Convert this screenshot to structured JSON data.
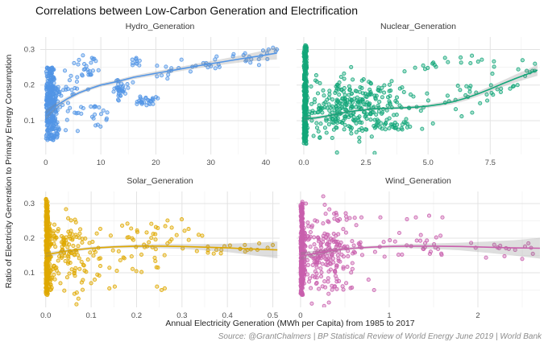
{
  "chart": {
    "title": "Correlations between Low-Carbon Generation and Electrification",
    "x_axis_label": "Annual Electricity Generation (MWh per Capita) from 1985 to 2017",
    "y_axis_label": "Ratio of Electricity Generation to Primary Energy Consumption",
    "caption": "Source: @GrantChalmers | BP Statistical Review of World Energy June 2019 | World Bank",
    "style": {
      "grid_major": "#e3e3e3",
      "grid_minor": "#f1f1f1",
      "ribbon_color": "#808080",
      "ribbon_opacity": 0.26,
      "tick_text_color": "#4f4f4f",
      "point_radius": 2.1,
      "point_fill_opacity": 0.38
    }
  },
  "chart_data": {
    "type": "scatter",
    "title": "Correlations between Low-Carbon Generation and Electrification",
    "xlabel": "Annual Electricity Generation (MWh per Capita) from 1985 to 2017",
    "ylabel": "Ratio of Electricity Generation to Primary Energy Consumption",
    "legend": "none",
    "grid": "on",
    "facets": [
      {
        "label": "Hydro_Generation",
        "color": "#5295E6",
        "seed": 7,
        "xlim": [
          -1,
          42.5
        ],
        "ylim": [
          0.005,
          0.335
        ],
        "xticks": [
          0,
          10,
          20,
          30,
          40
        ],
        "xtick_labels": [
          "0",
          "10",
          "20",
          "30",
          "40"
        ],
        "yticks": [
          0.1,
          0.2,
          0.3
        ],
        "ytick_labels": [
          "0.1",
          "0.2",
          "0.3"
        ],
        "trend": [
          [
            0,
            0.115
          ],
          [
            2,
            0.143
          ],
          [
            4,
            0.162
          ],
          [
            6,
            0.178
          ],
          [
            8,
            0.19
          ],
          [
            10,
            0.2
          ],
          [
            13,
            0.21
          ],
          [
            16,
            0.222
          ],
          [
            20,
            0.233
          ],
          [
            24,
            0.244
          ],
          [
            28,
            0.255
          ],
          [
            32,
            0.265
          ],
          [
            36,
            0.275
          ],
          [
            39,
            0.282
          ],
          [
            42,
            0.29
          ]
        ],
        "ci": [
          0.014,
          0.008,
          0.006,
          0.005,
          0.005,
          0.005,
          0.005,
          0.005,
          0.006,
          0.006,
          0.007,
          0.008,
          0.01,
          0.013,
          0.018
        ],
        "clusters": [
          {
            "type": "uniform",
            "n": 200,
            "x": [
              0.05,
              1.6
            ],
            "y": [
              0.045,
              0.25
            ]
          },
          {
            "type": "uniform",
            "n": 110,
            "x": [
              0.1,
              2.3
            ],
            "y": [
              0.05,
              0.2
            ]
          },
          {
            "type": "gauss",
            "n": 38,
            "cx": 4.3,
            "cy": 0.17,
            "sx": 1.4,
            "sy": 0.05,
            "xmin": 0.3
          },
          {
            "type": "gauss",
            "n": 22,
            "cx": 7.8,
            "cy": 0.245,
            "sx": 1.3,
            "sy": 0.018
          },
          {
            "type": "gauss",
            "n": 16,
            "cx": 9.8,
            "cy": 0.12,
            "sx": 1.1,
            "sy": 0.015
          },
          {
            "type": "gauss",
            "n": 34,
            "cx": 13.6,
            "cy": 0.19,
            "sx": 1.0,
            "sy": 0.012
          },
          {
            "type": "gauss",
            "n": 10,
            "cx": 16.2,
            "cy": 0.268,
            "sx": 0.7,
            "sy": 0.008
          },
          {
            "type": "uniform",
            "n": 26,
            "x": [
              16.5,
              20.5
            ],
            "y": [
              0.143,
              0.168
            ]
          },
          {
            "type": "band",
            "n": 26,
            "x": [
              20,
              35
            ],
            "jitter": 0.013
          },
          {
            "type": "gauss",
            "n": 12,
            "cx": 37,
            "cy": 0.272,
            "sx": 1.8,
            "sy": 0.01
          },
          {
            "type": "points",
            "pts": [
              [
                40.5,
                0.3
              ],
              [
                41.3,
                0.305
              ],
              [
                41.8,
                0.295
              ],
              [
                40.2,
                0.29
              ],
              [
                39.5,
                0.297
              ],
              [
                42,
                0.3
              ]
            ]
          }
        ]
      },
      {
        "label": "Nuclear_Generation",
        "color": "#13A679",
        "seed": 13,
        "xlim": [
          -0.29,
          9.5
        ],
        "ylim": [
          0.005,
          0.335
        ],
        "xticks": [
          0,
          2.5,
          5,
          7.5
        ],
        "xtick_labels": [
          "0.0",
          "2.5",
          "5.0",
          "7.5"
        ],
        "yticks": [
          0.1,
          0.2,
          0.3
        ],
        "ytick_labels": [
          "0.1",
          "0.2",
          "0.3"
        ],
        "trend": [
          [
            0,
            0.105
          ],
          [
            0.5,
            0.108
          ],
          [
            1,
            0.114
          ],
          [
            1.5,
            0.121
          ],
          [
            2,
            0.127
          ],
          [
            2.5,
            0.131
          ],
          [
            3,
            0.134
          ],
          [
            3.5,
            0.135
          ],
          [
            4,
            0.136
          ],
          [
            4.5,
            0.138
          ],
          [
            5,
            0.141
          ],
          [
            5.5,
            0.146
          ],
          [
            6,
            0.153
          ],
          [
            6.5,
            0.163
          ],
          [
            7,
            0.175
          ],
          [
            7.5,
            0.189
          ],
          [
            8,
            0.204
          ],
          [
            8.5,
            0.218
          ],
          [
            9,
            0.231
          ],
          [
            9.4,
            0.242
          ]
        ],
        "ci": [
          0.007,
          0.005,
          0.004,
          0.004,
          0.004,
          0.004,
          0.004,
          0.004,
          0.004,
          0.005,
          0.005,
          0.006,
          0.006,
          0.007,
          0.007,
          0.008,
          0.009,
          0.011,
          0.013,
          0.016
        ],
        "clusters": [
          {
            "type": "uniform",
            "n": 240,
            "x": [
              0.0,
              0.12
            ],
            "y": [
              0.035,
              0.315
            ]
          },
          {
            "type": "uniform",
            "n": 80,
            "x": [
              0.0,
              0.1
            ],
            "y": [
              0.06,
              0.2
            ]
          },
          {
            "type": "gauss",
            "n": 240,
            "cx": 1.5,
            "cy": 0.13,
            "sx": 0.95,
            "sy": 0.04,
            "xmin": 0.15
          },
          {
            "type": "gauss",
            "n": 70,
            "cx": 3.1,
            "cy": 0.15,
            "sx": 0.75,
            "sy": 0.035,
            "xmin": 0.2
          },
          {
            "type": "uniform",
            "n": 22,
            "x": [
              2.7,
              4.3
            ],
            "y": [
              0.075,
              0.095
            ]
          },
          {
            "type": "band",
            "n": 40,
            "x": [
              4.4,
              9.3
            ],
            "jitter": 0.024
          },
          {
            "type": "gauss",
            "n": 10,
            "cx": 6.6,
            "cy": 0.27,
            "sx": 0.7,
            "sy": 0.01
          },
          {
            "type": "gauss",
            "n": 7,
            "cx": 5.1,
            "cy": 0.255,
            "sx": 0.35,
            "sy": 0.008
          },
          {
            "type": "points",
            "pts": [
              [
                8.8,
                0.27
              ],
              [
                9.2,
                0.24
              ],
              [
                9.3,
                0.26
              ],
              [
                8.3,
                0.19
              ],
              [
                8.6,
                0.2
              ]
            ]
          }
        ]
      },
      {
        "label": "Solar_Generation",
        "color": "#DFA800",
        "seed": 21,
        "xlim": [
          -0.012,
          0.515
        ],
        "ylim": [
          0.0,
          0.335
        ],
        "xticks": [
          0,
          0.1,
          0.2,
          0.3,
          0.4,
          0.5
        ],
        "xtick_labels": [
          "0.0",
          "0.1",
          "0.2",
          "0.3",
          "0.4",
          "0.5"
        ],
        "yticks": [
          0.1,
          0.2,
          0.3
        ],
        "ytick_labels": [
          "0.1",
          "0.2",
          "0.3"
        ],
        "trend": [
          [
            0,
            0.152
          ],
          [
            0.05,
            0.164
          ],
          [
            0.1,
            0.171
          ],
          [
            0.15,
            0.175
          ],
          [
            0.2,
            0.177
          ],
          [
            0.25,
            0.177
          ],
          [
            0.3,
            0.176
          ],
          [
            0.35,
            0.174
          ],
          [
            0.4,
            0.172
          ],
          [
            0.45,
            0.169
          ],
          [
            0.51,
            0.166
          ]
        ],
        "ci": [
          0.007,
          0.004,
          0.004,
          0.004,
          0.005,
          0.006,
          0.007,
          0.009,
          0.012,
          0.017,
          0.024
        ],
        "clusters": [
          {
            "type": "uniform",
            "n": 230,
            "x": [
              0.0,
              0.005
            ],
            "y": [
              0.035,
              0.315
            ]
          },
          {
            "type": "uniform",
            "n": 80,
            "x": [
              0.0,
              0.012
            ],
            "y": [
              0.05,
              0.25
            ]
          },
          {
            "type": "gauss",
            "n": 130,
            "cx": 0.045,
            "cy": 0.155,
            "sx": 0.033,
            "sy": 0.05,
            "xmin": 0.004
          },
          {
            "type": "uniform",
            "n": 50,
            "x": [
              0.09,
              0.28
            ],
            "y": [
              0.09,
              0.245
            ]
          },
          {
            "type": "gauss",
            "n": 12,
            "cx": 0.285,
            "cy": 0.215,
            "sx": 0.02,
            "sy": 0.02
          },
          {
            "type": "band",
            "n": 20,
            "x": [
              0.3,
              0.5
            ],
            "jitter": 0.012
          },
          {
            "type": "points",
            "pts": [
              [
                0.245,
                0.06
              ],
              [
                0.255,
                0.05
              ],
              [
                0.262,
                0.055
              ],
              [
                0.14,
                0.055
              ],
              [
                0.152,
                0.06
              ],
              [
                0.1,
                0.07
              ],
              [
                0.47,
                0.185
              ],
              [
                0.5,
                0.18
              ]
            ]
          }
        ]
      },
      {
        "label": "Wind_Generation",
        "color": "#C95FAD",
        "seed": 33,
        "xlim": [
          -0.045,
          2.7
        ],
        "ylim": [
          0.0,
          0.335
        ],
        "xticks": [
          0,
          1,
          2
        ],
        "xtick_labels": [
          "0",
          "1",
          "2"
        ],
        "yticks": [
          0.1,
          0.2,
          0.3
        ],
        "ytick_labels": [
          "0.1",
          "0.2",
          "0.3"
        ],
        "trend": [
          [
            0,
            0.148
          ],
          [
            0.2,
            0.158
          ],
          [
            0.4,
            0.166
          ],
          [
            0.6,
            0.171
          ],
          [
            0.8,
            0.174
          ],
          [
            1.0,
            0.176
          ],
          [
            1.2,
            0.177
          ],
          [
            1.5,
            0.177
          ],
          [
            1.8,
            0.176
          ],
          [
            2.1,
            0.174
          ],
          [
            2.4,
            0.172
          ],
          [
            2.7,
            0.171
          ]
        ],
        "ci": [
          0.012,
          0.007,
          0.005,
          0.004,
          0.004,
          0.005,
          0.006,
          0.008,
          0.011,
          0.016,
          0.022,
          0.03
        ],
        "clusters": [
          {
            "type": "uniform",
            "n": 220,
            "x": [
              0.0,
              0.025
            ],
            "y": [
              0.035,
              0.3
            ]
          },
          {
            "type": "uniform",
            "n": 70,
            "x": [
              0.0,
              0.05
            ],
            "y": [
              0.06,
              0.22
            ]
          },
          {
            "type": "gauss",
            "n": 190,
            "cx": 0.25,
            "cy": 0.15,
            "sx": 0.17,
            "sy": 0.05,
            "xmin": 0.02
          },
          {
            "type": "uniform",
            "n": 13,
            "x": [
              0.08,
              0.75
            ],
            "y": [
              0.25,
              0.278
            ]
          },
          {
            "type": "band",
            "n": 38,
            "x": [
              0.45,
              1.6
            ],
            "jitter": 0.02
          },
          {
            "type": "uniform",
            "n": 12,
            "x": [
              0.3,
              0.95
            ],
            "y": [
              0.05,
              0.09
            ]
          },
          {
            "type": "band",
            "n": 12,
            "x": [
              1.6,
              2.6
            ],
            "jitter": 0.012
          },
          {
            "type": "points",
            "pts": [
              [
                0.9,
                0.26
              ],
              [
                1.3,
                0.26
              ],
              [
                1.45,
                0.265
              ],
              [
                1.6,
                0.26
              ],
              [
                1.2,
                0.255
              ],
              [
                2.3,
                0.148
              ],
              [
                2.5,
                0.14
              ],
              [
                2.62,
                0.155
              ],
              [
                2.42,
                0.166
              ],
              [
                0.02,
                0.305
              ],
              [
                0.06,
                0.3
              ]
            ]
          }
        ]
      }
    ]
  }
}
